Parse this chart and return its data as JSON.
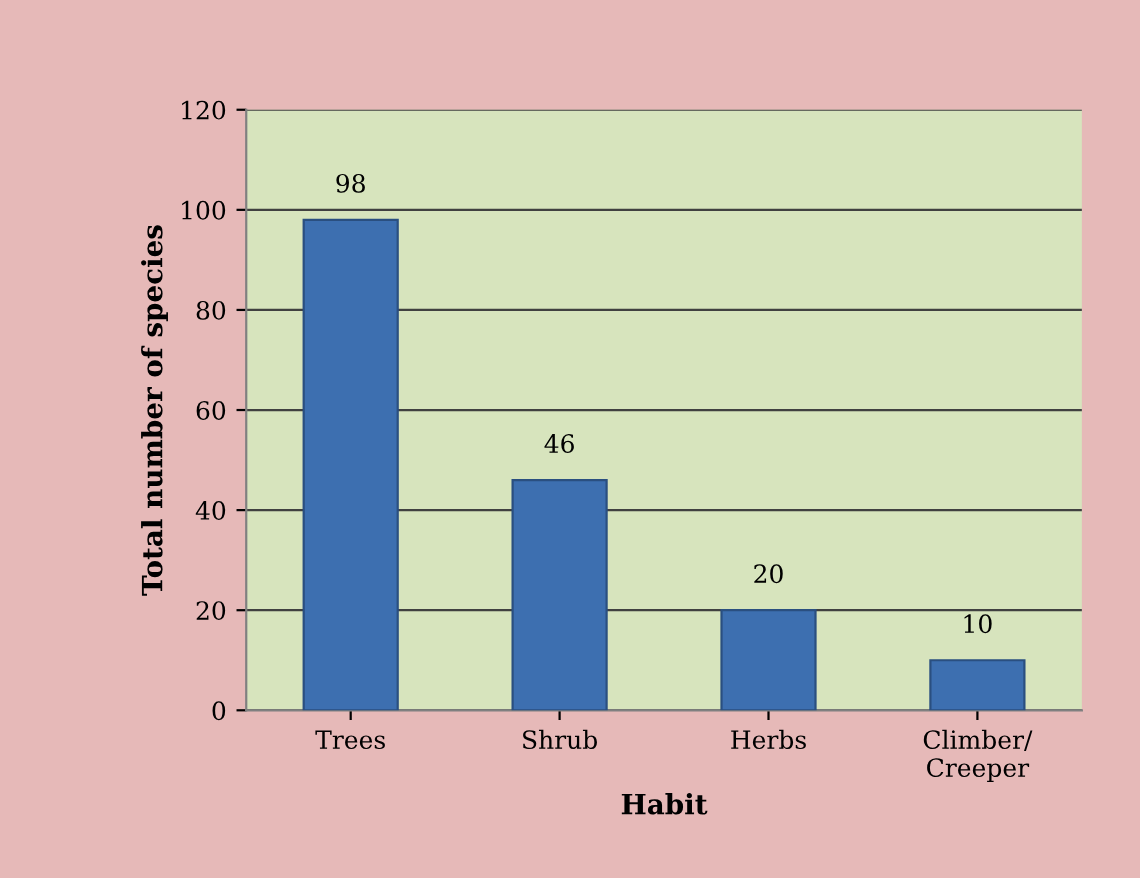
{
  "chart_data": {
    "type": "bar",
    "xlabel": "Habit",
    "ylabel": "Total number of species",
    "categories": [
      "Trees",
      "Shrub",
      "Herbs",
      "Climber/\nCreeper"
    ],
    "values": [
      98,
      46,
      20,
      10
    ],
    "color": "#3d6fb0",
    "ylim": [
      0,
      120
    ],
    "yticks": [
      0,
      20,
      40,
      60,
      80,
      100,
      120
    ],
    "grid": "y",
    "data_labels": true
  }
}
